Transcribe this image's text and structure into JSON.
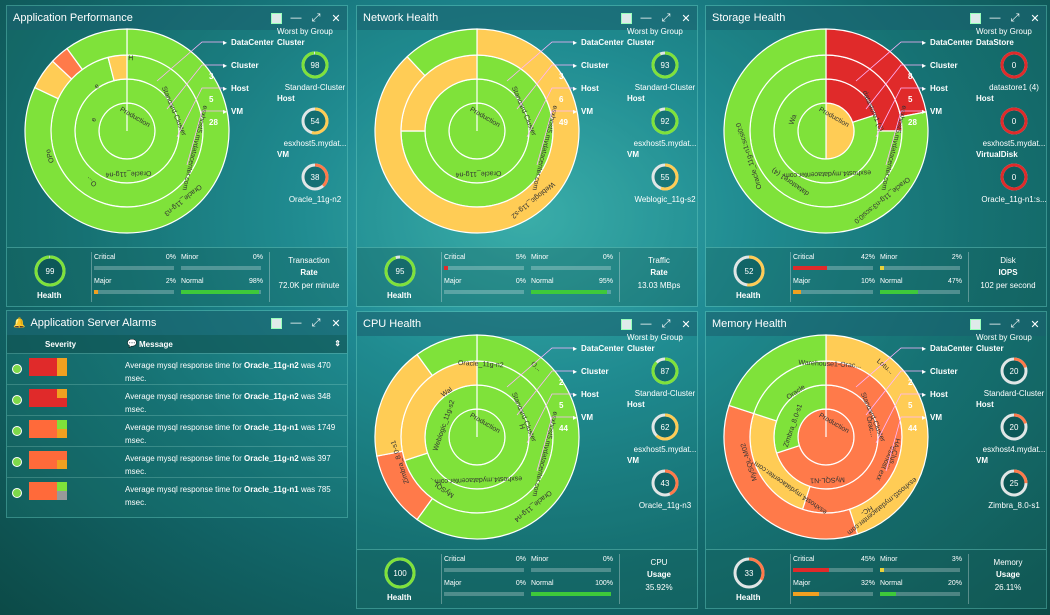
{
  "colors": {
    "green": "#7fe23a",
    "yellow": "#ffcc55",
    "orange": "#ff7a4a",
    "red": "#e02a2a"
  },
  "sunburst_legend": [
    "DataCenter",
    "Cluster",
    "Host",
    "VM"
  ],
  "panels": [
    {
      "title": "Application Performance",
      "counts": [
        "",
        "3",
        "5",
        "28"
      ],
      "wg": {
        "title": "Worst by Group",
        "groups": [
          {
            "label": "Cluster",
            "value": "98",
            "name": "Standard-Cluster",
            "color": "#7fe23a"
          },
          {
            "label": "Host",
            "value": "54",
            "name": "esxhost5.mydat...",
            "color": "#ffcc55"
          },
          {
            "label": "VM",
            "value": "38",
            "name": "Oracle_11g-n2",
            "color": "#ff7a4a"
          }
        ]
      },
      "health": {
        "value": "99",
        "label": "Health",
        "fill": 0.99,
        "color": "#7fe23a"
      },
      "stats": {
        "critical": "0%",
        "minor": "0%",
        "major": "2%",
        "normal": "98%",
        "critical_f": 0,
        "minor_f": 0,
        "major_f": 0.02,
        "normal_f": 0.98
      },
      "metric": {
        "title": "Transaction",
        "unit": "Rate",
        "value": "72.0K per minute"
      },
      "sb_labels": [
        "Production",
        "Standard-Cluster",
        "esxhost5.mydatacenter.com",
        "Oracle_11g-n3",
        "Oracle_11g-n4",
        "O...",
        "OPo",
        "e",
        "e",
        "H"
      ]
    },
    {
      "title": "Network Health",
      "counts": [
        "",
        "3",
        "6",
        "49"
      ],
      "wg": {
        "title": "Worst by Group",
        "groups": [
          {
            "label": "Cluster",
            "value": "93",
            "name": "Standard-Cluster",
            "color": "#7fe23a"
          },
          {
            "label": "Host",
            "value": "92",
            "name": "esxhost5.mydat...",
            "color": "#7fe23a"
          },
          {
            "label": "VM",
            "value": "55",
            "name": "Weblogic_11g-s2",
            "color": "#ffcc55"
          }
        ]
      },
      "health": {
        "value": "95",
        "label": "Health",
        "fill": 0.95,
        "color": "#7fe23a"
      },
      "stats": {
        "critical": "5%",
        "minor": "0%",
        "major": "0%",
        "normal": "95%",
        "critical_f": 0.05,
        "minor_f": 0,
        "major_f": 0,
        "normal_f": 0.95
      },
      "metric": {
        "title": "Traffic",
        "unit": "Rate",
        "value": "13.03 MBps"
      },
      "sb_labels": [
        "Production",
        "Standard-Cluster",
        "esxhost5.mydatacenter.com",
        "Weblogic_11g-s2",
        "Oracle_11g-n4"
      ]
    },
    {
      "title": "Storage Health",
      "counts": [
        "",
        "8",
        "5",
        "28"
      ],
      "wg": {
        "title": "Worst by Group",
        "groups": [
          {
            "label": "DataStore",
            "value": "0",
            "name": "datastore1 (4)",
            "color": "#e02a2a"
          },
          {
            "label": "Host",
            "value": "0",
            "name": "esxhost5.mydat...",
            "color": "#e02a2a"
          },
          {
            "label": "VirtualDisk",
            "value": "0",
            "name": "Oracle_11g-n1:s...",
            "color": "#e02a2a"
          }
        ]
      },
      "health": {
        "value": "52",
        "label": "Health",
        "fill": 0.52,
        "color": "#ffcc55"
      },
      "stats": {
        "critical": "42%",
        "minor": "2%",
        "major": "10%",
        "normal": "47%",
        "critical_f": 0.42,
        "minor_f": 0.02,
        "major_f": 0.1,
        "normal_f": 0.47
      },
      "metric": {
        "title": "Disk",
        "unit": "IOPS",
        "value": "102 per second"
      },
      "sb_labels": [
        "Production",
        "datastore1 (3)",
        "esxhost5.mydatacenter.com",
        "Oracle_11g-n3:scsi0:0",
        "esxhost4.mydatacenter.com",
        "datastore1 (4)",
        "Oracle_11g-n1:scsi0:0",
        "Wa"
      ]
    },
    {
      "title": "CPU Health",
      "counts": [
        "",
        "2",
        "5",
        "44"
      ],
      "wg": {
        "title": "Worst by Group",
        "groups": [
          {
            "label": "Cluster",
            "value": "87",
            "name": "Standard-Cluster",
            "color": "#7fe23a"
          },
          {
            "label": "Host",
            "value": "62",
            "name": "esxhost5.mydat...",
            "color": "#ffcc55"
          },
          {
            "label": "VM",
            "value": "43",
            "name": "Oracle_11g-n3",
            "color": "#ff7a4a"
          }
        ]
      },
      "health": {
        "value": "100",
        "label": "Health",
        "fill": 1.0,
        "color": "#7fe23a"
      },
      "stats": {
        "critical": "0%",
        "minor": "0%",
        "major": "0%",
        "normal": "100%",
        "critical_f": 0,
        "minor_f": 0,
        "major_f": 0,
        "normal_f": 1.0
      },
      "metric": {
        "title": "CPU",
        "unit": "Usage",
        "value": "35.92%"
      },
      "sb_labels": [
        "Production",
        "Standard-Cluster",
        "esxhost5.mydatacenter.com",
        "Oracle_11g-n4",
        "esxhost4.mydatacenter.com",
        "MySQL...",
        "Zimbra_8.0-s1",
        "Weblogic_11g-s2",
        "Wal",
        "Oracle_11g-n2",
        "O...",
        "H"
      ]
    },
    {
      "title": "Memory Health",
      "counts": [
        "",
        "2",
        "5",
        "44"
      ],
      "wg": {
        "title": "Worst by Group",
        "groups": [
          {
            "label": "Cluster",
            "value": "20",
            "name": "Standard-Cluster",
            "color": "#ff7a4a"
          },
          {
            "label": "Host",
            "value": "20",
            "name": "esxhost4.mydat...",
            "color": "#ff7a4a"
          },
          {
            "label": "VM",
            "value": "25",
            "name": "Zimbra_8.0-s1",
            "color": "#ff7a4a"
          }
        ]
      },
      "health": {
        "value": "33",
        "label": "Health",
        "fill": 0.33,
        "color": "#ff7a4a"
      },
      "stats": {
        "critical": "45%",
        "minor": "3%",
        "major": "32%",
        "normal": "20%",
        "critical_f": 0.45,
        "minor_f": 0.03,
        "major_f": 0.32,
        "normal_f": 0.2
      },
      "metric": {
        "title": "Memory",
        "unit": "Usage",
        "value": "26.11%"
      },
      "sb_labels": [
        "Production",
        "Standard-Cluster",
        "HA-Clus...",
        "esxhost5.mydatacenter.com",
        "MySQL-N1",
        "esxhost4.mydatacenter.com",
        "MySQL-M02",
        "Zimbra_8.0-s1",
        "Oracle",
        "Warehouse1-Orac...",
        "Lotu...",
        "Orac...",
        "esxhost exx",
        "HC-"
      ]
    }
  ],
  "alarms": {
    "title": "Application Server Alarms",
    "col_severity": "Severity",
    "col_message": "Message",
    "rows": [
      {
        "pre": "Average mysql response time for ",
        "vm": "Oracle_11g-n2",
        "post": " was 470 msec."
      },
      {
        "pre": "Average mysql response time for ",
        "vm": "Oracle_11g-n2",
        "post": " was 348 msec."
      },
      {
        "pre": "Average mysql response time for ",
        "vm": "Oracle_11g-n1",
        "post": " was 1749 msec."
      },
      {
        "pre": "Average mysql response time for ",
        "vm": "Oracle_11g-n2",
        "post": " was 397 msec."
      },
      {
        "pre": "Average mysql response time for ",
        "vm": "Oracle_11g-n1",
        "post": " was 785 msec."
      }
    ]
  },
  "stat_labels": {
    "critical": "Critical",
    "minor": "Minor",
    "major": "Major",
    "normal": "Normal"
  }
}
